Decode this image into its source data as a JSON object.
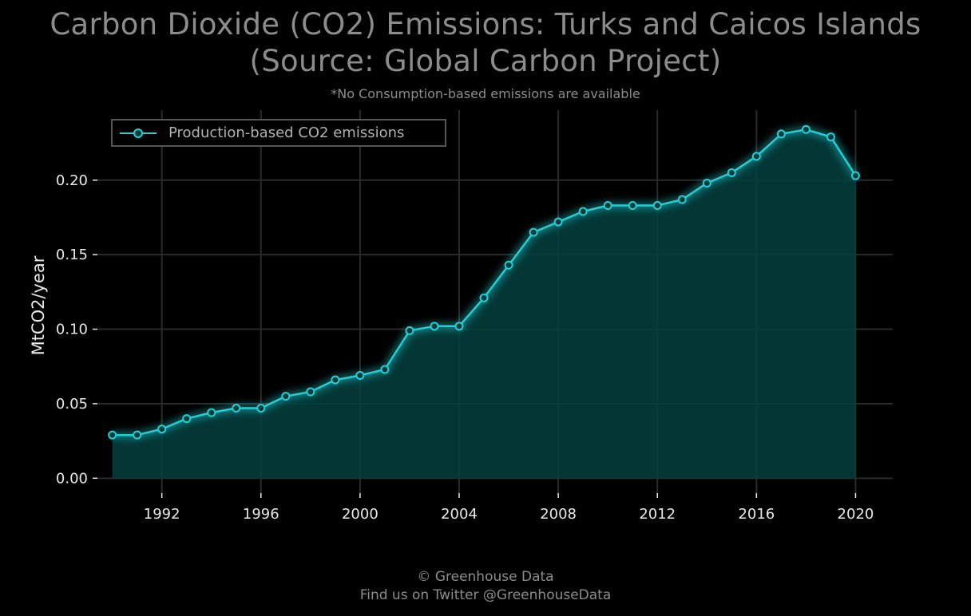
{
  "title_line1": "Carbon Dioxide (CO2) Emissions: Turks and Caicos Islands",
  "title_line2": "(Source: Global Carbon Project)",
  "subtitle": "*No Consumption-based emissions are available",
  "footer_line1": "© Greenhouse Data",
  "footer_line2": "Find us on Twitter @GreenhouseData",
  "chart_data": {
    "type": "area",
    "ylabel": "MtCO2/year",
    "xlabel": "",
    "xlim": [
      1989.4,
      2021.5
    ],
    "ylim": [
      -0.01,
      0.247
    ],
    "xticks": [
      1992,
      1996,
      2000,
      2004,
      2008,
      2012,
      2016,
      2020
    ],
    "yticks": [
      0.0,
      0.05,
      0.1,
      0.15,
      0.2
    ],
    "ytick_labels": [
      "0.00",
      "0.05",
      "0.10",
      "0.15",
      "0.20"
    ],
    "grid": true,
    "legend_position": "top-left",
    "colors": {
      "line": "#1fd1d6",
      "fill": "#053f3f",
      "grid": "#2a2a2a",
      "tick_text": "#e8e8e8",
      "label_text": "#e8e8e8"
    },
    "series": [
      {
        "name": "Production-based CO2 emissions",
        "x": [
          1990,
          1991,
          1992,
          1993,
          1994,
          1995,
          1996,
          1997,
          1998,
          1999,
          2000,
          2001,
          2002,
          2003,
          2004,
          2005,
          2006,
          2007,
          2008,
          2009,
          2010,
          2011,
          2012,
          2013,
          2014,
          2015,
          2016,
          2017,
          2018,
          2019,
          2020
        ],
        "y": [
          0.029,
          0.029,
          0.033,
          0.04,
          0.044,
          0.047,
          0.047,
          0.055,
          0.058,
          0.066,
          0.069,
          0.073,
          0.099,
          0.102,
          0.102,
          0.121,
          0.143,
          0.165,
          0.172,
          0.179,
          0.183,
          0.183,
          0.183,
          0.187,
          0.198,
          0.205,
          0.216,
          0.231,
          0.234,
          0.229,
          0.203
        ]
      }
    ]
  }
}
